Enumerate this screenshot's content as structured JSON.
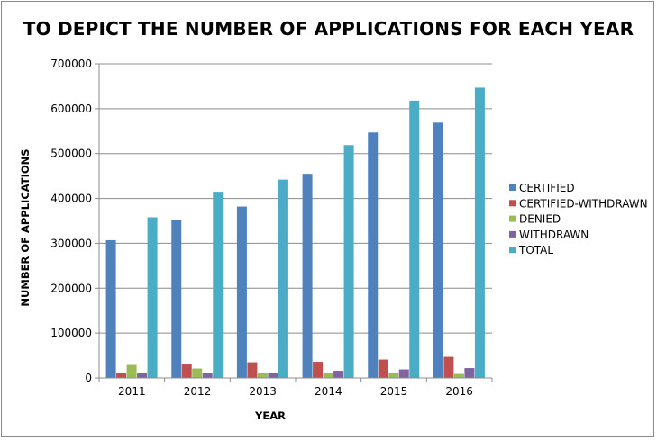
{
  "chart_data": {
    "type": "bar",
    "title": "TO DEPICT THE NUMBER OF APPLICATIONS FOR EACH YEAR",
    "xlabel": "YEAR",
    "ylabel": "NUMBER OF APPLICATIONS",
    "categories": [
      "2011",
      "2012",
      "2013",
      "2014",
      "2015",
      "2016"
    ],
    "ylim": [
      0,
      700000
    ],
    "yticks": [
      0,
      100000,
      200000,
      300000,
      400000,
      500000,
      600000,
      700000
    ],
    "grid": true,
    "legend_position": "right",
    "series": [
      {
        "name": "CERTIFIED",
        "color": "#4f81bd",
        "values": [
          307000,
          352000,
          382000,
          455000,
          547000,
          569000
        ]
      },
      {
        "name": "CERTIFIED-WITHDRAWN",
        "color": "#c0504d",
        "values": [
          11000,
          31000,
          35000,
          36000,
          41000,
          47000
        ]
      },
      {
        "name": "DENIED",
        "color": "#9bbb59",
        "values": [
          29000,
          21000,
          12000,
          12000,
          10000,
          9000
        ]
      },
      {
        "name": "WITHDRAWN",
        "color": "#8064a2",
        "values": [
          10000,
          10000,
          11000,
          16000,
          19000,
          22000
        ]
      },
      {
        "name": "TOTAL",
        "color": "#4bacc6",
        "values": [
          358000,
          415000,
          442000,
          519000,
          618000,
          647000
        ]
      }
    ]
  }
}
